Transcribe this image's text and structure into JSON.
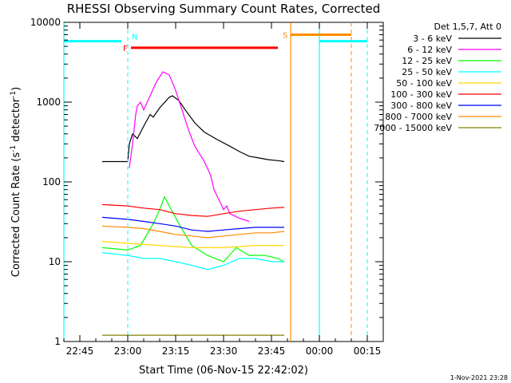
{
  "chart_data": {
    "type": "line",
    "title": "RHESSI Observing Summary Count Rates, Corrected",
    "xlabel": "Start Time (06-Nov-15 22:42:02)",
    "ylabel": "Corrected Count Rate (s",
    "ylabel_sup": "-1",
    "ylabel_tail": " detector",
    "ylabel_close": ")",
    "yscale": "log",
    "xlim": [
      "22:40",
      "00:20"
    ],
    "ylim": [
      1,
      10000
    ],
    "x_ticks": [
      "22:45",
      "23:00",
      "23:15",
      "23:30",
      "23:45",
      "00:00",
      "00:15"
    ],
    "x_tick_min": [
      5,
      20,
      35,
      50,
      65,
      80,
      95
    ],
    "y_ticks": [
      "1",
      "10",
      "100",
      "1000",
      "10000"
    ],
    "y_tick_vals": [
      1,
      10,
      100,
      1000,
      10000
    ],
    "legend_title": "Det 1,5,7, Att 0",
    "legend_position": "top-right, outside plot",
    "timestamp": "1-Nov-2021 23:28",
    "series": [
      {
        "name": "3 - 6 keV",
        "color": "#000000",
        "points": [
          [
            12,
            180
          ],
          [
            20,
            180
          ],
          [
            20.5,
            300
          ],
          [
            21.5,
            400
          ],
          [
            23,
            350
          ],
          [
            25,
            500
          ],
          [
            27,
            700
          ],
          [
            28,
            650
          ],
          [
            30,
            850
          ],
          [
            33,
            1150
          ],
          [
            34,
            1200
          ],
          [
            36,
            1050
          ],
          [
            38,
            800
          ],
          [
            41,
            550
          ],
          [
            44,
            420
          ],
          [
            48,
            340
          ],
          [
            52,
            280
          ],
          [
            55,
            240
          ],
          [
            58,
            210
          ],
          [
            61,
            200
          ],
          [
            64,
            190
          ],
          [
            67,
            185
          ],
          [
            69,
            180
          ]
        ]
      },
      {
        "name": "6 - 12 keV",
        "color": "#ff00ff",
        "points": [
          [
            20.5,
            150
          ],
          [
            21.5,
            300
          ],
          [
            22.5,
            700
          ],
          [
            23,
            900
          ],
          [
            24,
            1000
          ],
          [
            25,
            800
          ],
          [
            27,
            1200
          ],
          [
            29,
            1800
          ],
          [
            31,
            2400
          ],
          [
            33,
            2200
          ],
          [
            35,
            1400
          ],
          [
            37,
            800
          ],
          [
            39,
            450
          ],
          [
            41,
            280
          ],
          [
            44,
            180
          ],
          [
            46,
            120
          ],
          [
            47,
            80
          ],
          [
            49,
            55
          ],
          [
            50,
            45
          ],
          [
            51,
            50
          ],
          [
            52,
            40
          ],
          [
            55,
            35
          ],
          [
            58,
            32
          ]
        ]
      },
      {
        "name": "12 - 25 keV",
        "color": "#00ff00",
        "points": [
          [
            12,
            15
          ],
          [
            20,
            14
          ],
          [
            24,
            16
          ],
          [
            28,
            30
          ],
          [
            30,
            45
          ],
          [
            31.5,
            65
          ],
          [
            33,
            50
          ],
          [
            36,
            30
          ],
          [
            40,
            16
          ],
          [
            45,
            12
          ],
          [
            50,
            10
          ],
          [
            54,
            15
          ],
          [
            58,
            12
          ],
          [
            63,
            12
          ],
          [
            67,
            11
          ],
          [
            69,
            10
          ]
        ]
      },
      {
        "name": "25 - 50 keV",
        "color": "#00ffff",
        "points": [
          [
            12,
            13
          ],
          [
            20,
            12
          ],
          [
            25,
            11
          ],
          [
            30,
            11
          ],
          [
            35,
            10
          ],
          [
            40,
            9
          ],
          [
            45,
            8
          ],
          [
            50,
            9
          ],
          [
            55,
            11
          ],
          [
            60,
            11
          ],
          [
            65,
            10
          ],
          [
            69,
            10
          ]
        ]
      },
      {
        "name": "50 - 100 keV",
        "color": "#ffd700",
        "points": [
          [
            12,
            18
          ],
          [
            20,
            17
          ],
          [
            30,
            16
          ],
          [
            40,
            15
          ],
          [
            50,
            15
          ],
          [
            60,
            16
          ],
          [
            69,
            16
          ]
        ]
      },
      {
        "name": "100 - 300 keV",
        "color": "#ff0000",
        "points": [
          [
            12,
            52
          ],
          [
            20,
            50
          ],
          [
            25,
            47
          ],
          [
            30,
            45
          ],
          [
            35,
            40
          ],
          [
            40,
            38
          ],
          [
            45,
            37
          ],
          [
            50,
            40
          ],
          [
            55,
            43
          ],
          [
            60,
            45
          ],
          [
            65,
            47
          ],
          [
            69,
            48
          ]
        ]
      },
      {
        "name": "300 - 800 keV",
        "color": "#0000ff",
        "points": [
          [
            12,
            36
          ],
          [
            20,
            34
          ],
          [
            25,
            32
          ],
          [
            30,
            30
          ],
          [
            35,
            28
          ],
          [
            40,
            25
          ],
          [
            45,
            24
          ],
          [
            50,
            25
          ],
          [
            55,
            26
          ],
          [
            60,
            27
          ],
          [
            65,
            27
          ],
          [
            69,
            27
          ]
        ]
      },
      {
        "name": "800 - 7000 keV",
        "color": "#ff8c00",
        "points": [
          [
            12,
            28
          ],
          [
            20,
            27
          ],
          [
            25,
            26
          ],
          [
            30,
            24
          ],
          [
            35,
            22
          ],
          [
            40,
            21
          ],
          [
            45,
            20
          ],
          [
            50,
            21
          ],
          [
            55,
            22
          ],
          [
            60,
            23
          ],
          [
            65,
            23
          ],
          [
            69,
            24
          ]
        ]
      },
      {
        "name": "7000 - 15000 keV",
        "color": "#808000",
        "points": [
          [
            12,
            1.2
          ],
          [
            20,
            1.2
          ],
          [
            30,
            1.2
          ],
          [
            40,
            1.2
          ],
          [
            50,
            1.2
          ],
          [
            60,
            1.2
          ],
          [
            69,
            1.2
          ]
        ]
      }
    ],
    "annotations": [
      {
        "label": "N",
        "color": "#00ffff",
        "segments": [
          [
            0,
            18
          ],
          [
            80,
            95
          ]
        ],
        "y": 5800,
        "vlines": [
          20,
          95
        ]
      },
      {
        "label": "F",
        "color": "#ff0000",
        "segments": [
          [
            21,
            67
          ]
        ],
        "y": 4800
      },
      {
        "label": "S",
        "color": "#ff8c00",
        "segments": [
          [
            71,
            90
          ]
        ],
        "y": 7000,
        "vlines": [
          90
        ]
      }
    ],
    "vlines_solid": [
      {
        "x": 0,
        "color": "#00ffff"
      },
      {
        "x": 71,
        "color": "#ff8c00"
      },
      {
        "x": 80,
        "color": "#00ffff"
      }
    ]
  }
}
